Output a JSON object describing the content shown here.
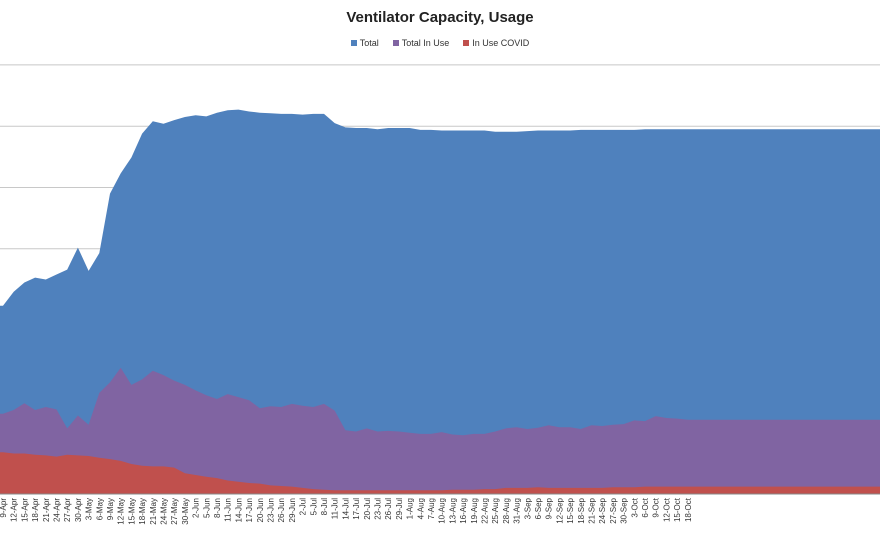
{
  "chart_data": {
    "type": "area",
    "title": "Ventilator Capacity, Usage",
    "stacked": false,
    "legend_position": "top",
    "grid": "horizontal",
    "colors": {
      "Total": "#4f81bd",
      "Total In Use": "#8064a2",
      "In Use COVID": "#c0504d"
    },
    "x": [
      "9-Apr",
      "12-Apr",
      "15-Apr",
      "18-Apr",
      "21-Apr",
      "24-Apr",
      "27-Apr",
      "30-Apr",
      "3-May",
      "6-May",
      "9-May",
      "12-May",
      "15-May",
      "18-May",
      "21-May",
      "24-May",
      "27-May",
      "30-May",
      "2-Jun",
      "5-Jun",
      "8-Jun",
      "11-Jun",
      "14-Jun",
      "17-Jun",
      "20-Jun",
      "23-Jun",
      "26-Jun",
      "29-Jun",
      "2-Jul",
      "5-Jul",
      "8-Jul",
      "11-Jul",
      "14-Jul",
      "17-Jul",
      "20-Jul",
      "23-Jul",
      "26-Jul",
      "29-Jul",
      "1-Aug",
      "4-Aug",
      "7-Aug",
      "10-Aug",
      "13-Aug",
      "16-Aug",
      "19-Aug",
      "22-Aug",
      "25-Aug",
      "28-Aug",
      "31-Aug",
      "3-Sep",
      "6-Sep",
      "9-Sep",
      "12-Sep",
      "15-Sep",
      "18-Sep",
      "21-Sep",
      "24-Sep",
      "27-Sep",
      "30-Sep",
      "3-Oct",
      "6-Oct",
      "9-Oct",
      "12-Oct",
      "15-Oct",
      "18-Oct"
    ],
    "series": [
      {
        "name": "Total",
        "values": [
          3.07,
          3.3,
          3.45,
          3.53,
          3.5,
          3.58,
          3.66,
          4.02,
          3.64,
          3.93,
          4.9,
          5.23,
          5.49,
          5.88,
          6.08,
          6.04,
          6.1,
          6.15,
          6.18,
          6.16,
          6.22,
          6.26,
          6.27,
          6.24,
          6.22,
          6.21,
          6.2,
          6.2,
          6.19,
          6.2,
          6.2,
          6.05,
          5.98,
          5.97,
          5.97,
          5.95,
          5.97,
          5.97,
          5.97,
          5.94,
          5.94,
          5.93,
          5.93,
          5.93,
          5.93,
          5.93,
          5.91,
          5.91,
          5.91,
          5.92,
          5.93,
          5.93,
          5.93,
          5.93,
          5.94,
          5.94,
          5.94,
          5.94,
          5.94,
          5.94,
          5.95,
          5.95,
          5.95,
          5.95,
          5.95
        ]
      },
      {
        "name": "Total In Use",
        "values": [
          1.31,
          1.37,
          1.48,
          1.37,
          1.42,
          1.38,
          1.07,
          1.28,
          1.13,
          1.65,
          1.82,
          2.06,
          1.78,
          1.87,
          2.01,
          1.94,
          1.85,
          1.78,
          1.69,
          1.61,
          1.55,
          1.63,
          1.58,
          1.53,
          1.4,
          1.43,
          1.42,
          1.47,
          1.44,
          1.42,
          1.47,
          1.36,
          1.04,
          1.02,
          1.07,
          1.02,
          1.03,
          1.02,
          1.0,
          0.98,
          0.98,
          1.01,
          0.97,
          0.96,
          0.98,
          0.98,
          1.02,
          1.07,
          1.09,
          1.06,
          1.08,
          1.12,
          1.09,
          1.09,
          1.06,
          1.12,
          1.11,
          1.13,
          1.14,
          1.2,
          1.19,
          1.27,
          1.24,
          1.23,
          1.21
        ]
      },
      {
        "name": "In Use COVID",
        "values": [
          0.68,
          0.66,
          0.66,
          0.64,
          0.63,
          0.61,
          0.64,
          0.63,
          0.62,
          0.59,
          0.57,
          0.54,
          0.49,
          0.46,
          0.45,
          0.45,
          0.43,
          0.34,
          0.31,
          0.28,
          0.26,
          0.22,
          0.2,
          0.18,
          0.17,
          0.14,
          0.13,
          0.12,
          0.1,
          0.08,
          0.07,
          0.06,
          0.06,
          0.06,
          0.06,
          0.06,
          0.06,
          0.06,
          0.06,
          0.06,
          0.06,
          0.06,
          0.07,
          0.07,
          0.07,
          0.08,
          0.08,
          0.1,
          0.1,
          0.1,
          0.11,
          0.1,
          0.1,
          0.1,
          0.1,
          0.1,
          0.1,
          0.11,
          0.11,
          0.11,
          0.12,
          0.12,
          0.12,
          0.12,
          0.12
        ]
      }
    ]
  }
}
